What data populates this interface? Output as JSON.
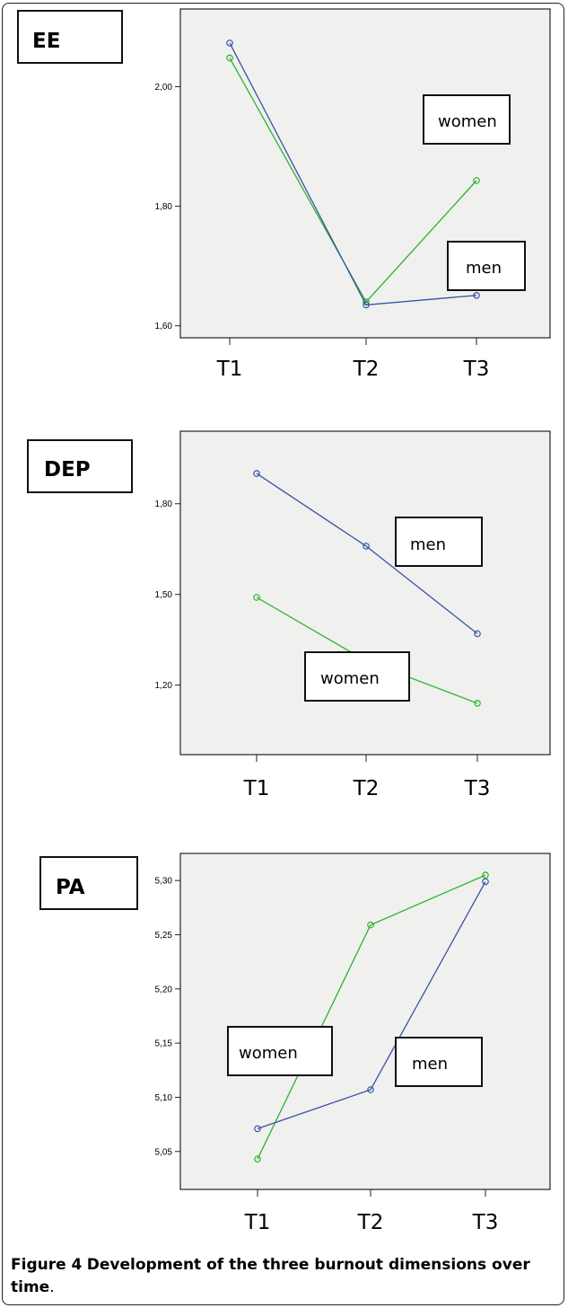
{
  "colors": {
    "women": "#2db32d",
    "men": "#3a52a8",
    "plot_bg": "#f0f0ef"
  },
  "caption": {
    "label": "Figure 4",
    "text": "Development of the three burnout dimensions over time",
    "period": "."
  },
  "chart_data": [
    {
      "type": "line",
      "title": "EE",
      "categories": [
        "T1",
        "T2",
        "T3"
      ],
      "ylim": [
        1.58,
        2.13
      ],
      "yticks": [
        1.6,
        1.8,
        2.0
      ],
      "ytick_labels": [
        "1,60",
        "1,80",
        "2,00"
      ],
      "series": [
        {
          "name": "women",
          "values": [
            2.048,
            1.64,
            1.843
          ]
        },
        {
          "name": "men",
          "values": [
            2.073,
            1.635,
            1.651
          ]
        }
      ],
      "labels": [
        {
          "series": "women",
          "text": "women"
        },
        {
          "series": "men",
          "text": "men"
        }
      ]
    },
    {
      "type": "line",
      "title": "DEP",
      "categories": [
        "T1",
        "T2",
        "T3"
      ],
      "ylim": [
        0.97,
        2.04
      ],
      "yticks": [
        1.2,
        1.5,
        1.8
      ],
      "ytick_labels": [
        "1,20",
        "1,50",
        "1,80"
      ],
      "series": [
        {
          "name": "men",
          "values": [
            1.9,
            1.66,
            1.37
          ]
        },
        {
          "name": "women",
          "values": [
            1.49,
            1.28,
            1.14
          ]
        }
      ],
      "labels": [
        {
          "series": "men",
          "text": "men"
        },
        {
          "series": "women",
          "text": "women"
        }
      ]
    },
    {
      "type": "line",
      "title": "PA",
      "categories": [
        "T1",
        "T2",
        "T3"
      ],
      "ylim": [
        5.015,
        5.325
      ],
      "yticks": [
        5.05,
        5.1,
        5.15,
        5.2,
        5.25,
        5.3
      ],
      "ytick_labels": [
        "5,05",
        "5,10",
        "5,15",
        "5,20",
        "5,25",
        "5,30"
      ],
      "series": [
        {
          "name": "women",
          "values": [
            5.043,
            5.259,
            5.305
          ]
        },
        {
          "name": "men",
          "values": [
            5.071,
            5.107,
            5.299
          ]
        }
      ],
      "labels": [
        {
          "series": "women",
          "text": "women"
        },
        {
          "series": "men",
          "text": "men"
        }
      ]
    }
  ]
}
